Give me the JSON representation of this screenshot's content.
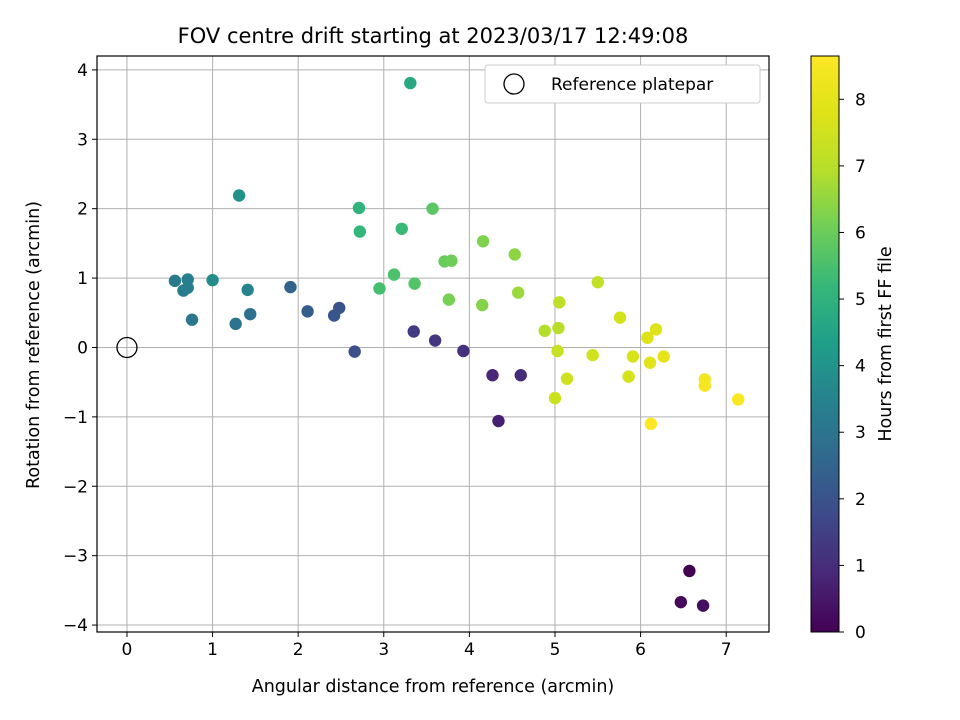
{
  "chart_data": {
    "type": "scatter",
    "title": "FOV centre drift starting at 2023/03/17 12:49:08",
    "xlabel": "Angular distance from reference (arcmin)",
    "ylabel": "Rotation from reference (arcmin)",
    "xlim": [
      -0.35,
      7.5
    ],
    "ylim": [
      -4.1,
      4.2
    ],
    "xticks": [
      0,
      1,
      2,
      3,
      4,
      5,
      6,
      7
    ],
    "yticks": [
      -4,
      -3,
      -2,
      -1,
      0,
      1,
      2,
      3,
      4
    ],
    "grid": true,
    "legend": {
      "location": "upper right",
      "entries": [
        "Reference platepar"
      ]
    },
    "reference_point": {
      "label": "Reference platepar",
      "x": 0,
      "y": 0
    },
    "colorbar": {
      "label": "Hours from first FF file",
      "colormap": "viridis",
      "range": [
        0,
        8.65
      ],
      "ticks": [
        0,
        1,
        2,
        3,
        4,
        5,
        6,
        7,
        8
      ]
    },
    "series": [
      {
        "points": [
          {
            "x": 6.57,
            "y": -3.22,
            "c": 0.0
          },
          {
            "x": 6.47,
            "y": -3.67,
            "c": 0.15
          },
          {
            "x": 6.73,
            "y": -3.72,
            "c": 0.3
          },
          {
            "x": 4.34,
            "y": -1.06,
            "c": 0.7
          },
          {
            "x": 4.27,
            "y": -0.4,
            "c": 0.85
          },
          {
            "x": 4.6,
            "y": -0.4,
            "c": 1.0
          },
          {
            "x": 3.93,
            "y": -0.05,
            "c": 1.1
          },
          {
            "x": 3.6,
            "y": 0.1,
            "c": 1.2
          },
          {
            "x": 3.35,
            "y": 0.23,
            "c": 1.35
          },
          {
            "x": 2.66,
            "y": -0.06,
            "c": 1.9
          },
          {
            "x": 2.48,
            "y": 0.57,
            "c": 2.0
          },
          {
            "x": 2.42,
            "y": 0.46,
            "c": 2.1
          },
          {
            "x": 2.11,
            "y": 0.52,
            "c": 2.3
          },
          {
            "x": 1.91,
            "y": 0.87,
            "c": 2.45
          },
          {
            "x": 1.44,
            "y": 0.48,
            "c": 2.9
          },
          {
            "x": 1.27,
            "y": 0.34,
            "c": 3.0
          },
          {
            "x": 0.76,
            "y": 0.4,
            "c": 3.1
          },
          {
            "x": 0.56,
            "y": 0.96,
            "c": 3.2
          },
          {
            "x": 0.66,
            "y": 0.82,
            "c": 3.25
          },
          {
            "x": 0.71,
            "y": 0.86,
            "c": 3.3
          },
          {
            "x": 0.71,
            "y": 0.98,
            "c": 3.35
          },
          {
            "x": 1.41,
            "y": 0.83,
            "c": 3.5
          },
          {
            "x": 1.0,
            "y": 0.97,
            "c": 3.8
          },
          {
            "x": 1.31,
            "y": 2.19,
            "c": 4.0
          },
          {
            "x": 3.31,
            "y": 3.81,
            "c": 4.7
          },
          {
            "x": 2.71,
            "y": 2.01,
            "c": 5.05
          },
          {
            "x": 2.72,
            "y": 1.67,
            "c": 5.15
          },
          {
            "x": 3.21,
            "y": 1.71,
            "c": 5.25
          },
          {
            "x": 2.95,
            "y": 0.85,
            "c": 5.45
          },
          {
            "x": 3.12,
            "y": 1.05,
            "c": 5.55
          },
          {
            "x": 3.36,
            "y": 0.92,
            "c": 5.65
          },
          {
            "x": 3.57,
            "y": 2.0,
            "c": 5.75
          },
          {
            "x": 3.71,
            "y": 1.24,
            "c": 5.95
          },
          {
            "x": 3.79,
            "y": 1.25,
            "c": 6.05
          },
          {
            "x": 3.76,
            "y": 0.69,
            "c": 6.15
          },
          {
            "x": 4.16,
            "y": 1.53,
            "c": 6.25
          },
          {
            "x": 4.15,
            "y": 0.61,
            "c": 6.35
          },
          {
            "x": 4.53,
            "y": 1.34,
            "c": 6.45
          },
          {
            "x": 4.57,
            "y": 0.79,
            "c": 6.6
          },
          {
            "x": 4.88,
            "y": 0.24,
            "c": 6.9
          },
          {
            "x": 5.04,
            "y": 0.28,
            "c": 7.0
          },
          {
            "x": 5.05,
            "y": 0.65,
            "c": 7.1
          },
          {
            "x": 5.5,
            "y": 0.94,
            "c": 7.2
          },
          {
            "x": 5.03,
            "y": -0.05,
            "c": 7.3
          },
          {
            "x": 5.0,
            "y": -0.73,
            "c": 7.4
          },
          {
            "x": 5.14,
            "y": -0.45,
            "c": 7.45
          },
          {
            "x": 5.44,
            "y": -0.11,
            "c": 7.5
          },
          {
            "x": 5.76,
            "y": 0.43,
            "c": 7.6
          },
          {
            "x": 5.86,
            "y": -0.42,
            "c": 7.65
          },
          {
            "x": 5.91,
            "y": -0.13,
            "c": 7.7
          },
          {
            "x": 6.08,
            "y": 0.14,
            "c": 7.8
          },
          {
            "x": 6.18,
            "y": 0.26,
            "c": 7.85
          },
          {
            "x": 6.11,
            "y": -0.22,
            "c": 7.9
          },
          {
            "x": 6.27,
            "y": -0.13,
            "c": 8.0
          },
          {
            "x": 6.75,
            "y": -0.46,
            "c": 8.35
          },
          {
            "x": 6.75,
            "y": -0.55,
            "c": 8.45
          },
          {
            "x": 7.14,
            "y": -0.75,
            "c": 8.55
          },
          {
            "x": 6.12,
            "y": -1.1,
            "c": 8.65
          }
        ]
      }
    ]
  }
}
